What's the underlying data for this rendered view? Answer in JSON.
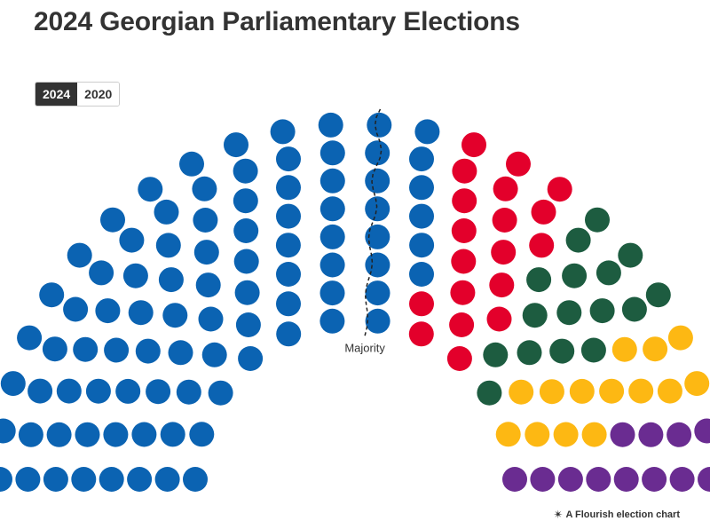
{
  "title": "2024 Georgian Parliamentary Elections",
  "year_toggle": [
    {
      "label": "2024",
      "active": true
    },
    {
      "label": "2020",
      "active": false
    }
  ],
  "footer": {
    "icon": "flourish-icon",
    "text": "A Flourish election chart"
  },
  "chart_data": {
    "type": "parliament",
    "total_seats": 150,
    "majority_label": "Majority",
    "majority_threshold": 76,
    "parties": [
      {
        "seats": 89,
        "color": "#0b63b2"
      },
      {
        "seats": 19,
        "color": "#e3002b"
      },
      {
        "seats": 16,
        "color": "#1d5c40"
      },
      {
        "seats": 14,
        "color": "#fdb813"
      },
      {
        "seats": 12,
        "color": "#6a2c91"
      }
    ]
  }
}
